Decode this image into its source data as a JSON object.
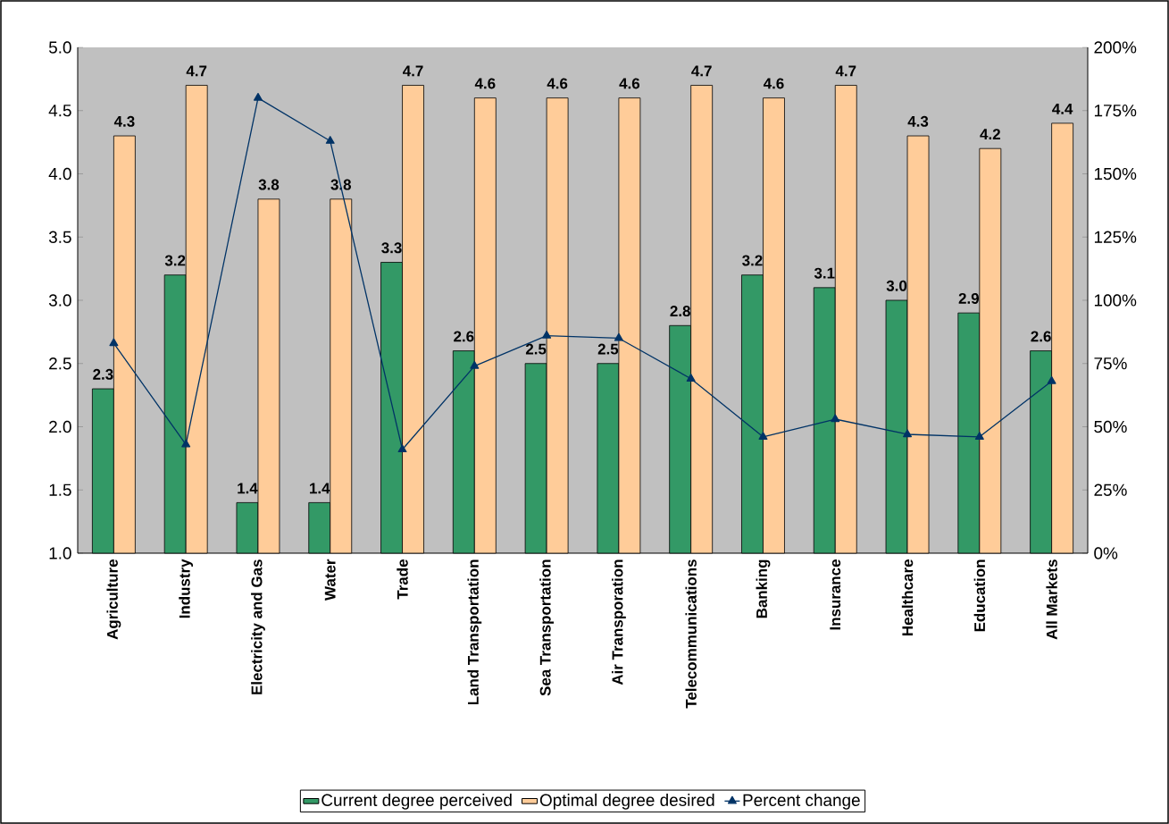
{
  "chart_data": {
    "type": "bar",
    "categories": [
      "Agriculture",
      "Industry",
      "Electricity and Gas",
      "Water",
      "Trade",
      "Land Transportation",
      "Sea Transportation",
      "Air Transporation",
      "Telecommunications",
      "Banking",
      "Insurance",
      "Healthcare",
      "Education",
      "All Markets"
    ],
    "series": [
      {
        "name": "Current degree perceived",
        "color": "#339966",
        "values": [
          2.3,
          3.2,
          1.4,
          1.4,
          3.3,
          2.6,
          2.5,
          2.5,
          2.8,
          3.2,
          3.1,
          3.0,
          2.9,
          2.6
        ],
        "value_labels": [
          "2.3",
          "3.2",
          "1.4",
          "1.4",
          "3.3",
          "2.6",
          "2.5",
          "2.5",
          "2.8",
          "3.2",
          "3.1",
          "3.0",
          "2.9",
          "2.6"
        ]
      },
      {
        "name": "Optimal degree desired",
        "color": "#ffcc99",
        "values": [
          4.3,
          4.7,
          3.8,
          3.8,
          4.7,
          4.6,
          4.6,
          4.6,
          4.7,
          4.6,
          4.7,
          4.3,
          4.2,
          4.4
        ],
        "value_labels": [
          "4.3",
          "4.7",
          "3.8",
          "3.8",
          "4.7",
          "4.6",
          "4.6",
          "4.6",
          "4.7",
          "4.6",
          "4.7",
          "4.3",
          "4.2",
          "4.4"
        ]
      },
      {
        "name": "Percent change",
        "type": "line",
        "axis": "y2",
        "marker": "triangle",
        "color": "#003366",
        "values": [
          83,
          43,
          180,
          163,
          41,
          74,
          86,
          85,
          69,
          46,
          53,
          47,
          46,
          68
        ]
      }
    ],
    "ylim": [
      1,
      5
    ],
    "yticks": [
      {
        "value": 1,
        "label": "1.0"
      },
      {
        "value": 1.5,
        "label": "1.5"
      },
      {
        "value": 2,
        "label": "2.0"
      },
      {
        "value": 2.5,
        "label": "2.5"
      },
      {
        "value": 3,
        "label": "3.0"
      },
      {
        "value": 3.5,
        "label": "3.5"
      },
      {
        "value": 4,
        "label": "4.0"
      },
      {
        "value": 4.5,
        "label": "4.5"
      },
      {
        "value": 5,
        "label": "5.0"
      }
    ],
    "y2lim": [
      0,
      200
    ],
    "y2ticks": [
      {
        "value": 0,
        "label": "0%"
      },
      {
        "value": 25,
        "label": "25%"
      },
      {
        "value": 50,
        "label": "50%"
      },
      {
        "value": 75,
        "label": "75%"
      },
      {
        "value": 100,
        "label": "100%"
      },
      {
        "value": 125,
        "label": "125%"
      },
      {
        "value": 150,
        "label": "150%"
      },
      {
        "value": 175,
        "label": "175%"
      },
      {
        "value": 200,
        "label": "200%"
      }
    ],
    "legend": "bottom"
  }
}
